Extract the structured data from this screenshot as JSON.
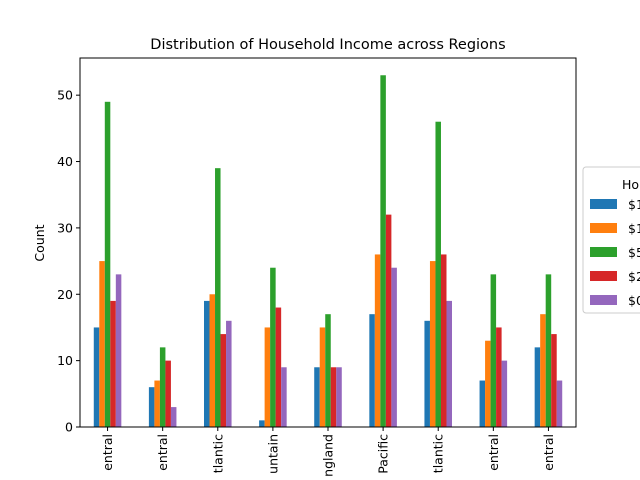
{
  "chart_data": {
    "type": "bar",
    "title": "Distribution of Household Income across Regions",
    "xlabel": "",
    "ylabel": "Count",
    "ylim": [
      0,
      55.6
    ],
    "yticks": [
      0,
      10,
      20,
      30,
      40,
      50
    ],
    "categories": [
      "entral",
      "entral",
      "tlantic",
      "untain",
      "ngland",
      "Pacific",
      "tlantic",
      "entral",
      "entral"
    ],
    "legend": {
      "title": "Ho",
      "placement": "right, outside plot (clipped)"
    },
    "series": [
      {
        "name": "$1",
        "color": "#1f77b4",
        "values": [
          15,
          6,
          19,
          1,
          9,
          17,
          16,
          7,
          12
        ]
      },
      {
        "name": "$1",
        "color": "#ff7f0e",
        "values": [
          25,
          7,
          20,
          15,
          15,
          26,
          25,
          13,
          17
        ]
      },
      {
        "name": "$5",
        "color": "#2ca02c",
        "values": [
          49,
          12,
          39,
          24,
          17,
          53,
          46,
          23,
          23
        ]
      },
      {
        "name": "$2",
        "color": "#d62728",
        "values": [
          19,
          10,
          14,
          18,
          9,
          32,
          26,
          15,
          14
        ]
      },
      {
        "name": "$0",
        "color": "#9467bd",
        "values": [
          23,
          3,
          16,
          9,
          9,
          24,
          19,
          10,
          7
        ]
      }
    ]
  }
}
